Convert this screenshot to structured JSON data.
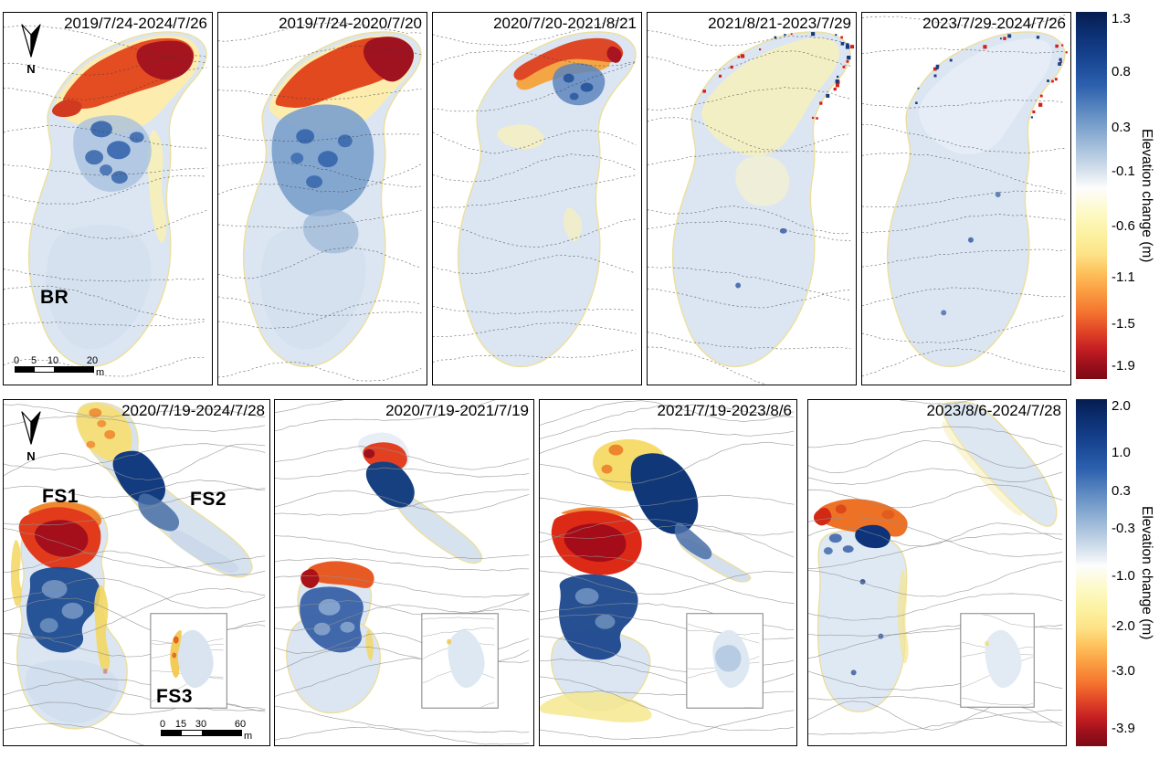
{
  "figure": {
    "top_row": {
      "panels": [
        {
          "title": "2019/7/24-2024/7/26"
        },
        {
          "title": "2019/7/24-2020/7/20"
        },
        {
          "title": "2020/7/20-2021/8/21"
        },
        {
          "title": "2021/8/21-2023/7/29"
        },
        {
          "title": "2023/7/29-2024/7/26"
        }
      ],
      "glacier_label": "BR",
      "north_label": "N",
      "scale_bar": {
        "tick0": "0",
        "tick1": "5",
        "tick2": "10",
        "tick3": "20",
        "unit": "m"
      },
      "colorbar": {
        "label": "Elevation change (m)",
        "ticks": [
          "1.3",
          "0.8",
          "0.3",
          "-0.1",
          "-0.6",
          "-1.1",
          "-1.5",
          "-1.9"
        ]
      }
    },
    "bottom_row": {
      "panels": [
        {
          "title": "2020/7/19-2024/7/28"
        },
        {
          "title": "2020/7/19-2021/7/19"
        },
        {
          "title": "2021/7/19-2023/8/6"
        },
        {
          "title": "2023/8/6-2024/7/28"
        }
      ],
      "glacier_labels": {
        "fs1": "FS1",
        "fs2": "FS2",
        "fs3": "FS3"
      },
      "north_label": "N",
      "scale_bar": {
        "tick0": "0",
        "tick1": "15",
        "tick2": "30",
        "tick3": "60",
        "unit": "m"
      },
      "colorbar": {
        "label": "Elevation change (m)",
        "ticks": [
          "2.0",
          "1.0",
          "0.3",
          "-0.3",
          "-1.0",
          "-2.0",
          "-3.0",
          "-3.9"
        ]
      }
    },
    "colors": {
      "positive_max_blue": "#08306b",
      "neutral_white": "#ffffff",
      "negative_yellow": "#fcf19e",
      "negative_orange": "#fb9e42",
      "negative_max_red": "#7c0a14",
      "contour_top": "#3a3a3a",
      "contour_bottom": "#8f8f8f"
    }
  },
  "chart_data": [
    {
      "type": "heatmap",
      "title": "BR glacier surface elevation change maps",
      "panels": [
        "2019/7/24-2024/7/26",
        "2019/7/24-2020/7/20",
        "2020/7/20-2021/8/21",
        "2021/8/21-2023/7/29",
        "2023/7/29-2024/7/26"
      ],
      "map_labels": [
        "BR"
      ],
      "colorbar": {
        "label": "Elevation change (m)",
        "tick_values": [
          1.3,
          0.8,
          0.3,
          -0.1,
          -0.6,
          -1.1,
          -1.5,
          -1.9
        ],
        "range": [
          -1.9,
          1.3
        ],
        "palette": "blue-white-yellow-orange-red (RdYlBu reversed)"
      },
      "scale_bar_m": [
        0,
        5,
        10,
        20
      ],
      "legend_position": "right",
      "notes": "Dashed elevation contour background; strong lowering (red) at upper margin, heaving (blue) patches in center, near-zero pale-blue body."
    },
    {
      "type": "heatmap",
      "title": "FS1/FS2/FS3 glacier surface elevation change maps",
      "panels": [
        "2020/7/19-2024/7/28",
        "2020/7/19-2021/7/19",
        "2021/7/19-2023/8/6",
        "2023/8/6-2024/7/28"
      ],
      "map_labels": [
        "FS1",
        "FS2",
        "FS3"
      ],
      "colorbar": {
        "label": "Elevation change (m)",
        "tick_values": [
          2.0,
          1.0,
          0.3,
          -0.3,
          -1.0,
          -2.0,
          -3.0,
          -3.9
        ],
        "range": [
          -3.9,
          2.0
        ],
        "palette": "blue-white-yellow-orange-red (RdYlBu reversed)"
      },
      "scale_bar_m": [
        0,
        15,
        30,
        60
      ],
      "legend_position": "right",
      "notes": "FS3 shown in inset box; FS1 shows red lowering lobe above dark-blue gain band; FS2 shows yellow upper basin with dark-blue tongue."
    }
  ]
}
